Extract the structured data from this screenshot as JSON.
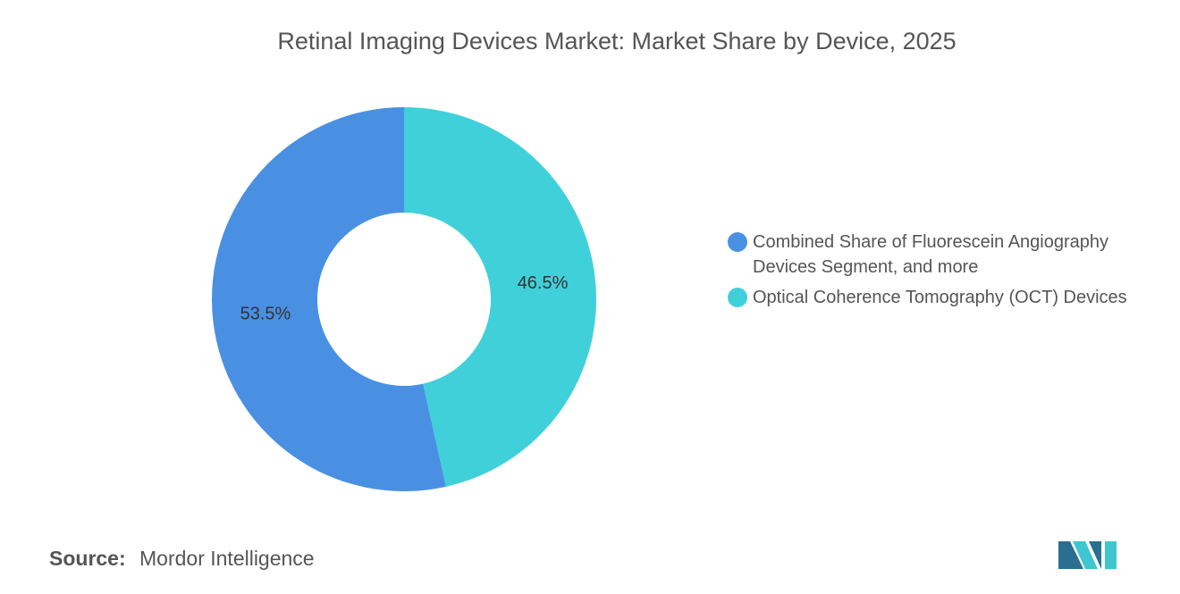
{
  "chart_data": {
    "type": "donut",
    "title": "Retinal Imaging Devices Market: Market Share by Device, 2025",
    "categories": [
      "Combined Share of Fluorescein Angiography Devices Segment, and more",
      "Optical Coherence Tomography (OCT) Devices"
    ],
    "values": [
      53.5,
      46.5
    ],
    "value_labels": [
      "53.5%",
      "46.5%"
    ],
    "colors": [
      "#4a90e2",
      "#40d0da"
    ],
    "source_label": "Source:",
    "source": "Mordor Intelligence"
  }
}
